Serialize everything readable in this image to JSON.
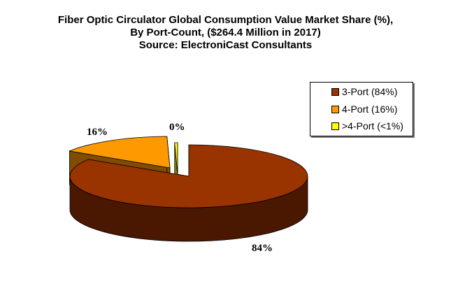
{
  "chart_data": {
    "type": "pie",
    "title_lines": [
      "Fiber Optic Circulator Global Consumption Value Market Share (%),",
      "By Port-Count, ($264.4 Million in 2017)",
      "Source: ElectroniCast Consultants"
    ],
    "slices": [
      {
        "name": "3-Port",
        "value": 84,
        "data_label": "84%",
        "legend": "3-Port (84%)",
        "color": "#993300",
        "side_color": "#4a1700"
      },
      {
        "name": "4-Port",
        "value": 15.6,
        "data_label": "16%",
        "legend": "4-Port (16%)",
        "color": "#ff9900",
        "side_color": "#7f4c00"
      },
      {
        "name": ">4-Port",
        "value": 0.4,
        "data_label": "0%",
        "legend": ">4-Port (<1%)",
        "color": "#ffff00",
        "side_color": "#808000"
      }
    ],
    "legend_position": "right",
    "style": "3d-exploded"
  }
}
